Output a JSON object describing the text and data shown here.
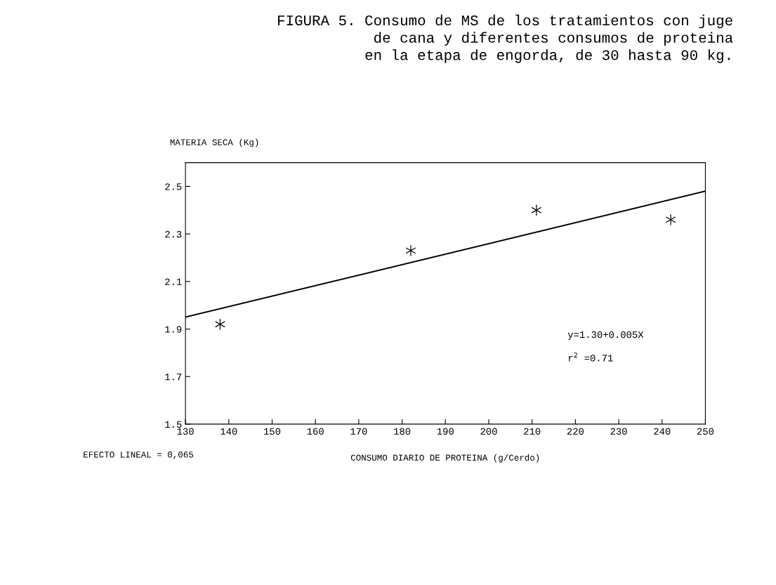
{
  "chart_data": {
    "type": "scatter",
    "title": "FIGURA 5. Consumo de MS de los tratamientos con juge\nde cana y diferentes consumos de proteina\nen la etapa de engorda, de 30 hasta 90 kg.",
    "xlabel": "CONSUMO DIARIO DE PROTEINA (g/Cerdo)",
    "ylabel": "MATERIA SECA (Kg)",
    "series": [
      {
        "color": "#000000",
        "x": [
          138,
          182,
          211,
          242
        ],
        "values": [
          1.92,
          2.23,
          2.4,
          2.36
        ],
        "marker": "cross"
      },
      {
        "type": "line",
        "color": "#000000",
        "x": [
          130,
          250
        ],
        "values": [
          1.95,
          2.48
        ],
        "marker": "none",
        "line_style": "solid"
      }
    ],
    "xlim": [
      130,
      250
    ],
    "xticks": [
      130,
      140,
      150,
      160,
      170,
      180,
      190,
      200,
      210,
      220,
      230,
      240,
      250
    ],
    "ylim": [
      1.5,
      2.6
    ],
    "yticks": [
      1.5,
      1.7,
      1.9,
      2.1,
      2.3,
      2.5
    ],
    "annotations": [
      "y=1.30+0.005X",
      "r$^{2}$ =0.71",
      "EFECTO LINEAL = 0,065"
    ],
    "grid": false,
    "legend": false
  }
}
